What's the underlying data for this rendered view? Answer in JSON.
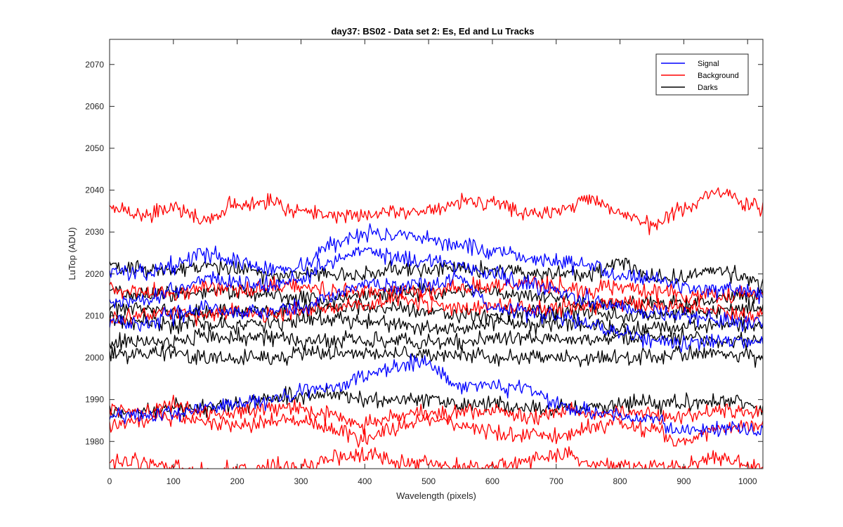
{
  "chart_data": {
    "type": "line",
    "title": "day37: BS02 - Data set 2: Es, Ed and Lu Tracks",
    "xlabel": "Wavelength (pixels)",
    "ylabel": "LuTop (ADU)",
    "xlim": [
      0,
      1024
    ],
    "ylim": [
      1973.5,
      2076
    ],
    "xticks": [
      0,
      100,
      200,
      300,
      400,
      500,
      600,
      700,
      800,
      900,
      1000
    ],
    "yticks": [
      1980,
      1990,
      2000,
      2010,
      2020,
      2030,
      2040,
      2050,
      2060,
      2070
    ],
    "grid": false,
    "legend_position": "top-right",
    "legend": [
      {
        "name": "Signal",
        "color": "#0000ff"
      },
      {
        "name": "Background",
        "color": "#ff0000"
      },
      {
        "name": "Darks",
        "color": "#000000"
      }
    ],
    "x_points": [
      0,
      50,
      100,
      150,
      200,
      250,
      300,
      350,
      400,
      450,
      500,
      550,
      600,
      650,
      700,
      750,
      800,
      850,
      900,
      950,
      1024
    ],
    "series": [
      {
        "group": "Signal",
        "color": "#0000ff",
        "values": [
          2021,
          2020,
          2022,
          2025,
          2023,
          2021,
          2022,
          2027,
          2030,
          2029,
          2028,
          2027,
          2025,
          2024,
          2023,
          2022,
          2020,
          2019,
          2017,
          2016,
          2015
        ]
      },
      {
        "group": "Signal",
        "color": "#0000ff",
        "values": [
          2013,
          2014,
          2016,
          2019,
          2018,
          2017,
          2019,
          2023,
          2026,
          2024,
          2023,
          2022,
          2020,
          2018,
          2016,
          2014,
          2012,
          2011,
          2010,
          2009,
          2008
        ]
      },
      {
        "group": "Signal",
        "color": "#0000ff",
        "values": [
          2009,
          2008,
          2010,
          2012,
          2011,
          2011,
          2012,
          2015,
          2018,
          2017,
          2017,
          2019,
          2012,
          2011,
          2010,
          2008,
          2006,
          2004,
          2003,
          2004,
          2004
        ]
      },
      {
        "group": "Signal",
        "color": "#0000ff",
        "values": [
          1986,
          1986,
          1987,
          1988,
          1989,
          1990,
          1992,
          1993,
          1996,
          1998,
          1999,
          1993,
          1993,
          1993,
          1989,
          1987,
          1986,
          1985,
          1982,
          1983,
          1983
        ]
      },
      {
        "group": "Background",
        "color": "#ff0000",
        "values": [
          2036,
          2034,
          2036,
          2033,
          2037,
          2037,
          2035,
          2034,
          2034,
          2035,
          2035,
          2037,
          2037,
          2035,
          2035,
          2038,
          2034,
          2032,
          2036,
          2040,
          2036
        ]
      },
      {
        "group": "Background",
        "color": "#ff0000",
        "values": [
          2016,
          2016,
          2015,
          2017,
          2016,
          2017,
          2017,
          2016,
          2016,
          2016,
          2016,
          2017,
          2017,
          2018,
          2017,
          2016,
          2017,
          2016,
          2015,
          2015,
          2015
        ]
      },
      {
        "group": "Background",
        "color": "#ff0000",
        "values": [
          2009,
          2010,
          2011,
          2010,
          2011,
          2010,
          2011,
          2012,
          2013,
          2014,
          2013,
          2012,
          2012,
          2012,
          2012,
          2012,
          2013,
          2013,
          2012,
          2011,
          2010
        ]
      },
      {
        "group": "Background",
        "color": "#ff0000",
        "values": [
          1988,
          1987,
          1989,
          1987,
          1987,
          1988,
          1988,
          1986,
          1984,
          1986,
          1987,
          1987,
          1987,
          1986,
          1987,
          1987,
          1987,
          1986,
          1986,
          1987,
          1987
        ]
      },
      {
        "group": "Background",
        "color": "#ff0000",
        "values": [
          1984,
          1985,
          1986,
          1985,
          1984,
          1985,
          1985,
          1983,
          1981,
          1983,
          1985,
          1984,
          1982,
          1982,
          1981,
          1983,
          1984,
          1983,
          1980,
          1983,
          1984
        ]
      },
      {
        "group": "Background",
        "color": "#ff0000",
        "values": [
          1975,
          1975,
          1974,
          1973,
          1973,
          1974,
          1974,
          1976,
          1977,
          1975,
          1975,
          1974,
          1974,
          1975,
          1977,
          1975,
          1974,
          1974,
          1974,
          1976,
          1974
        ]
      },
      {
        "group": "Darks",
        "color": "#000000",
        "values": [
          2022,
          2021,
          2021,
          2022,
          2021,
          2020,
          2020,
          2020,
          2020,
          2021,
          2021,
          2021,
          2021,
          2020,
          2020,
          2020,
          2023,
          2019,
          2019,
          2021,
          2018
        ]
      },
      {
        "group": "Darks",
        "color": "#000000",
        "values": [
          2016,
          2015,
          2015,
          2016,
          2016,
          2015,
          2014,
          2014,
          2015,
          2015,
          2016,
          2016,
          2016,
          2015,
          2014,
          2013,
          2013,
          2013,
          2013,
          2014,
          2015
        ]
      },
      {
        "group": "Darks",
        "color": "#000000",
        "values": [
          2012,
          2012,
          2011,
          2011,
          2011,
          2011,
          2012,
          2012,
          2012,
          2012,
          2011,
          2010,
          2010,
          2011,
          2011,
          2011,
          2010,
          2010,
          2011,
          2011,
          2012
        ]
      },
      {
        "group": "Darks",
        "color": "#000000",
        "values": [
          2009,
          2009,
          2008,
          2008,
          2008,
          2008,
          2009,
          2009,
          2009,
          2008,
          2007,
          2007,
          2008,
          2008,
          2008,
          2008,
          2007,
          2007,
          2007,
          2008,
          2008
        ]
      },
      {
        "group": "Darks",
        "color": "#000000",
        "values": [
          2004,
          2004,
          2004,
          2005,
          2005,
          2005,
          2004,
          2004,
          2004,
          2004,
          2004,
          2004,
          2005,
          2005,
          2004,
          2004,
          2005,
          2005,
          2005,
          2004,
          2004
        ]
      },
      {
        "group": "Darks",
        "color": "#000000",
        "values": [
          2001,
          2001,
          2001,
          2000,
          2000,
          2000,
          2001,
          2001,
          2001,
          2001,
          2001,
          2001,
          2000,
          2000,
          2000,
          2000,
          2000,
          2000,
          2001,
          2001,
          2000
        ]
      },
      {
        "group": "Darks",
        "color": "#000000",
        "values": [
          1987,
          1987,
          1988,
          1988,
          1989,
          1990,
          1991,
          1991,
          1990,
          1990,
          1990,
          1989,
          1989,
          1988,
          1988,
          1988,
          1989,
          1989,
          1989,
          1990,
          1988
        ]
      }
    ]
  }
}
